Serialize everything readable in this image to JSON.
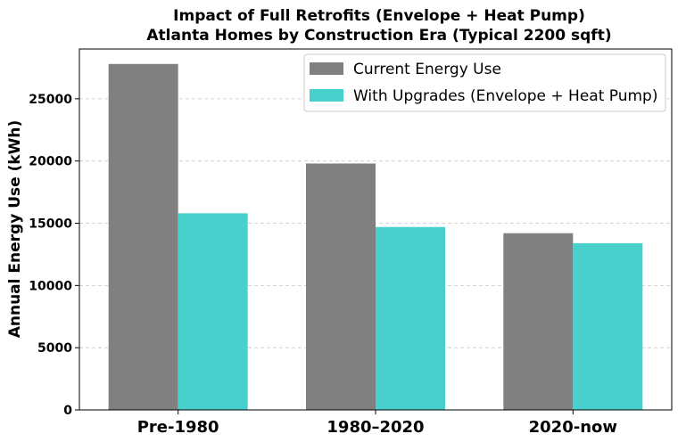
{
  "chart_data": {
    "type": "bar",
    "title_lines": [
      "Impact of Full Retrofits (Envelope + Heat Pump)",
      "Atlanta Homes by Construction Era (Typical 2200 sqft)"
    ],
    "xlabel": "",
    "ylabel": "Annual Energy Use (kWh)",
    "categories": [
      "Pre-1980",
      "1980–2020",
      "2020-now"
    ],
    "series": [
      {
        "name": "Current Energy Use",
        "color": "#808080",
        "values": [
          27800,
          19800,
          14200
        ]
      },
      {
        "name": "With Upgrades (Envelope + Heat Pump)",
        "color": "#48D1CC",
        "values": [
          15800,
          14700,
          13400
        ]
      }
    ],
    "ylim": [
      0,
      29000
    ],
    "yticks": [
      0,
      5000,
      10000,
      15000,
      20000,
      25000
    ],
    "grid": "y-dashed",
    "legend_position": "top-right"
  }
}
